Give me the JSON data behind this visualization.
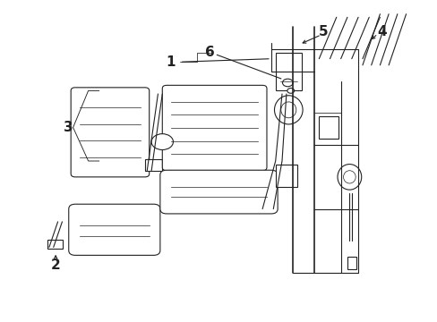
{
  "bg_color": "#ffffff",
  "fig_width": 4.89,
  "fig_height": 3.6,
  "dpi": 100,
  "label_fontsize": 11,
  "line_color": "#222222",
  "line_width": 0.8
}
